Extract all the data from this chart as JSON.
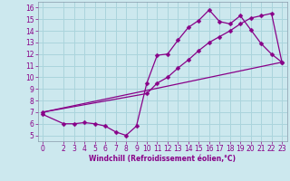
{
  "xlabel": "Windchill (Refroidissement éolien,°C)",
  "bg_color": "#cce8ee",
  "line_color": "#880088",
  "grid_color": "#aad4dc",
  "spine_color": "#8899aa",
  "xlim": [
    -0.5,
    23.5
  ],
  "ylim": [
    4.5,
    16.5
  ],
  "xticks": [
    0,
    2,
    3,
    4,
    5,
    6,
    7,
    8,
    9,
    10,
    11,
    12,
    13,
    14,
    15,
    16,
    17,
    18,
    19,
    20,
    21,
    22,
    23
  ],
  "yticks": [
    5,
    6,
    7,
    8,
    9,
    10,
    11,
    12,
    13,
    14,
    15,
    16
  ],
  "line1_x": [
    0,
    2,
    3,
    4,
    5,
    6,
    7,
    8,
    9,
    10,
    11,
    12,
    13,
    14,
    15,
    16,
    17,
    18,
    19,
    20,
    21,
    22,
    23
  ],
  "line1_y": [
    6.8,
    6.0,
    6.0,
    6.1,
    6.0,
    5.8,
    5.3,
    5.0,
    5.8,
    9.5,
    11.9,
    12.0,
    13.2,
    14.3,
    14.9,
    15.8,
    14.8,
    14.6,
    15.3,
    14.1,
    12.9,
    12.0,
    11.3
  ],
  "line2_x": [
    0,
    10,
    11,
    12,
    13,
    14,
    15,
    16,
    17,
    18,
    19,
    20,
    21,
    22,
    23
  ],
  "line2_y": [
    7.0,
    8.6,
    9.5,
    10.0,
    10.8,
    11.5,
    12.3,
    13.0,
    13.5,
    14.0,
    14.6,
    15.1,
    15.3,
    15.5,
    11.3
  ],
  "line3_x": [
    0,
    23
  ],
  "line3_y": [
    7.0,
    11.3
  ],
  "marker": "D",
  "markersize": 2.5,
  "linewidth": 0.9,
  "tick_fontsize": 5.5,
  "xlabel_fontsize": 5.5
}
